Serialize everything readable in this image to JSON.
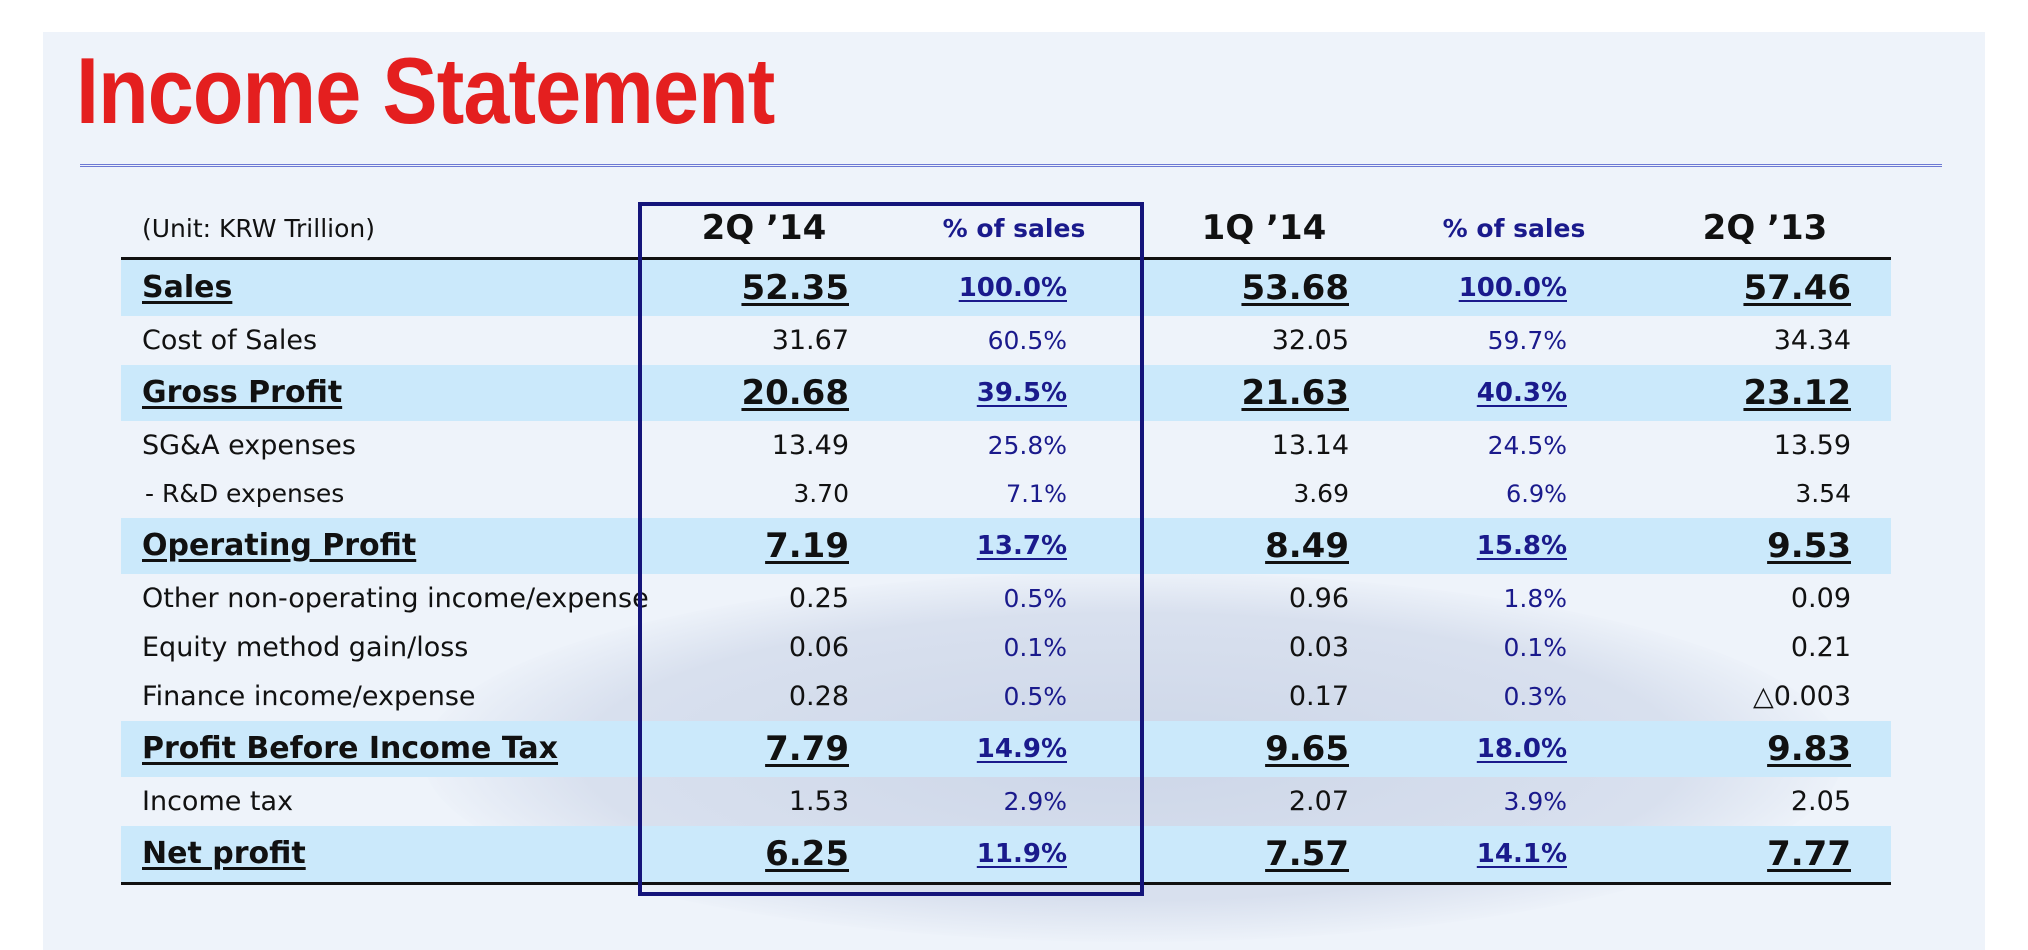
{
  "title": "Income Statement",
  "unit_label": "(Unit: KRW Trillion)",
  "columns": [
    "2Q ’14",
    "% of sales",
    "1Q ’14",
    "% of sales",
    "2Q ’13"
  ],
  "rows": [
    {
      "label": "Sales",
      "values": [
        "52.35",
        "100.0%",
        "53.68",
        "100.0%",
        "57.46"
      ]
    },
    {
      "label": "Cost of Sales",
      "values": [
        "31.67",
        "60.5%",
        "32.05",
        "59.7%",
        "34.34"
      ]
    },
    {
      "label": "Gross Profit",
      "values": [
        "20.68",
        "39.5%",
        "21.63",
        "40.3%",
        "23.12"
      ]
    },
    {
      "label": "SG&A expenses",
      "values": [
        "13.49",
        "25.8%",
        "13.14",
        "24.5%",
        "13.59"
      ]
    },
    {
      "label": "- R&D expenses",
      "values": [
        "3.70",
        "7.1%",
        "3.69",
        "6.9%",
        "3.54"
      ]
    },
    {
      "label": "Operating Profit",
      "values": [
        "7.19",
        "13.7%",
        "8.49",
        "15.8%",
        "9.53"
      ]
    },
    {
      "label": "Other non-operating income/expense",
      "values": [
        "0.25",
        "0.5%",
        "0.96",
        "1.8%",
        "0.09"
      ]
    },
    {
      "label": "Equity method gain/loss",
      "values": [
        "0.06",
        "0.1%",
        "0.03",
        "0.1%",
        "0.21"
      ]
    },
    {
      "label": "Finance income/expense",
      "values": [
        "0.28",
        "0.5%",
        "0.17",
        "0.3%",
        "△0.003"
      ]
    },
    {
      "label": "Profit Before Income Tax",
      "values": [
        "7.79",
        "14.9%",
        "9.65",
        "18.0%",
        "9.83"
      ]
    },
    {
      "label": "Income tax",
      "values": [
        "1.53",
        "2.9%",
        "2.07",
        "3.9%",
        "2.05"
      ]
    },
    {
      "label": "Net profit",
      "values": [
        "6.25",
        "11.9%",
        "7.57",
        "14.1%",
        "7.77"
      ]
    }
  ],
  "colors": {
    "title": "#e41f1f",
    "highlight_row": "#cbe9fb",
    "box": "#14147a",
    "percent_text": "#1a1a8c"
  }
}
